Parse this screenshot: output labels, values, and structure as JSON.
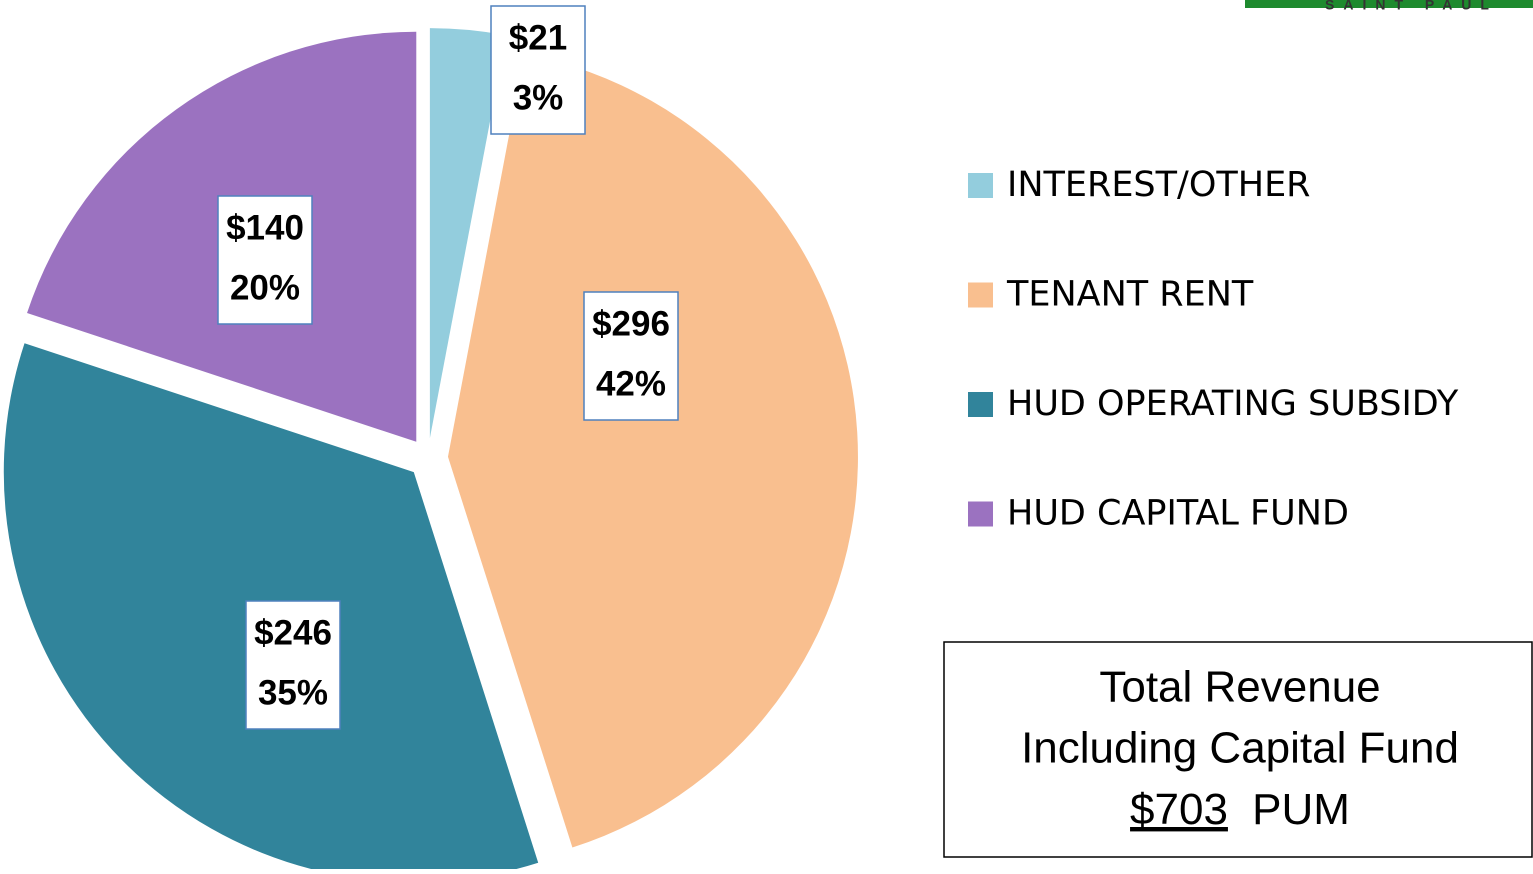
{
  "chart_data": {
    "type": "pie",
    "categories": [
      "INTEREST/OTHER",
      "TENANT RENT",
      "HUD OPERATING SUBSIDY",
      "HUD CAPITAL FUND"
    ],
    "values": [
      21,
      296,
      246,
      140
    ],
    "value_labels": [
      "$21",
      "$296",
      "$246",
      "$140"
    ],
    "percent_labels": [
      "3%",
      "42%",
      "35%",
      "20%"
    ],
    "colors": [
      "#93cddd",
      "#f9bf8f",
      "#31849b",
      "#9b72c0"
    ],
    "legend": "right"
  },
  "total_box": {
    "lines": [
      "Total Revenue",
      "Including Capital Fund"
    ],
    "amount": "$703",
    "unit": "PUM"
  },
  "logo_text": "SAINT PAUL"
}
